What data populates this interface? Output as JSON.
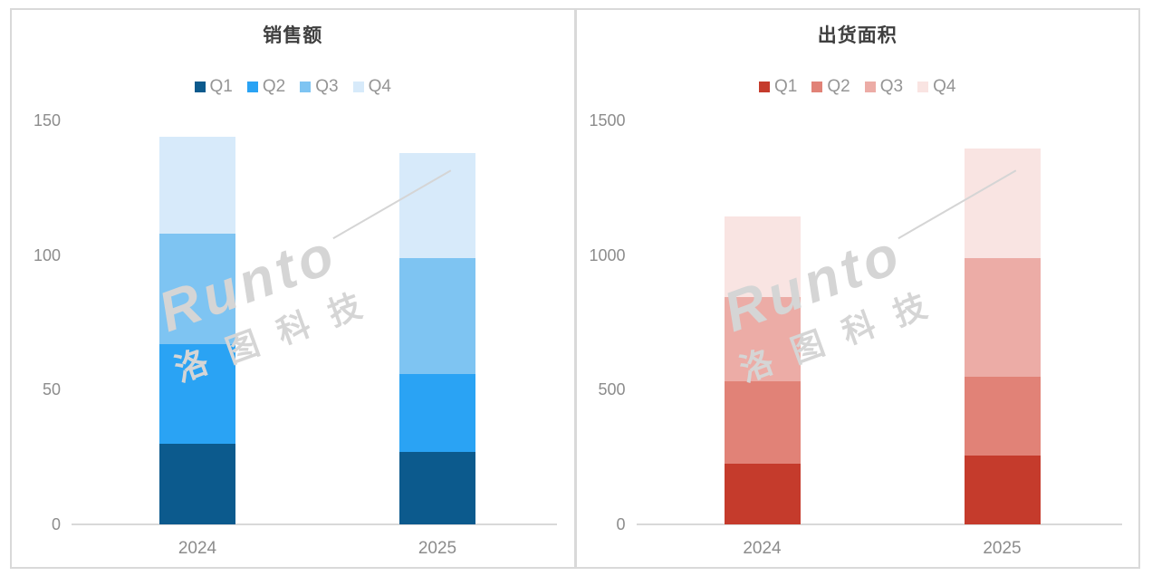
{
  "watermark": {
    "brand": "Runto",
    "cn": "洛图科技"
  },
  "frame": {
    "border_color": "#D9D9D9",
    "divider_color": "#D9D9D9"
  },
  "text_colors": {
    "title": "#3F3F3F",
    "ticks": "#8C8C8C",
    "legend": "#959595"
  },
  "chart_data": [
    {
      "type": "bar",
      "stacked": true,
      "title": "销售额",
      "categories": [
        "2024",
        "2025"
      ],
      "series": [
        {
          "name": "Q1",
          "values": [
            30,
            27
          ]
        },
        {
          "name": "Q2",
          "values": [
            37,
            29
          ]
        },
        {
          "name": "Q3",
          "values": [
            41,
            43
          ]
        },
        {
          "name": "Q4",
          "values": [
            36,
            39
          ]
        }
      ],
      "totals": [
        144,
        138
      ],
      "colors": [
        "#0C5A8D",
        "#2AA3F4",
        "#7EC4F2",
        "#D7EAFA"
      ],
      "ylim": [
        0,
        150
      ],
      "yticks": [
        150,
        100,
        50,
        0
      ],
      "xlabel": "",
      "ylabel": "",
      "grid": false,
      "legend_position": "top"
    },
    {
      "type": "bar",
      "stacked": true,
      "title": "出货面积",
      "categories": [
        "2024",
        "2025"
      ],
      "series": [
        {
          "name": "Q1",
          "values": [
            225,
            255
          ]
        },
        {
          "name": "Q2",
          "values": [
            305,
            295
          ]
        },
        {
          "name": "Q3",
          "values": [
            315,
            440
          ]
        },
        {
          "name": "Q4",
          "values": [
            300,
            405
          ]
        }
      ],
      "totals": [
        1145,
        1395
      ],
      "colors": [
        "#C53B2C",
        "#E18277",
        "#ECACA6",
        "#F9E4E2"
      ],
      "ylim": [
        0,
        1500
      ],
      "yticks": [
        1500,
        1000,
        500,
        0
      ],
      "xlabel": "",
      "ylabel": "",
      "grid": false,
      "legend_position": "top"
    }
  ]
}
